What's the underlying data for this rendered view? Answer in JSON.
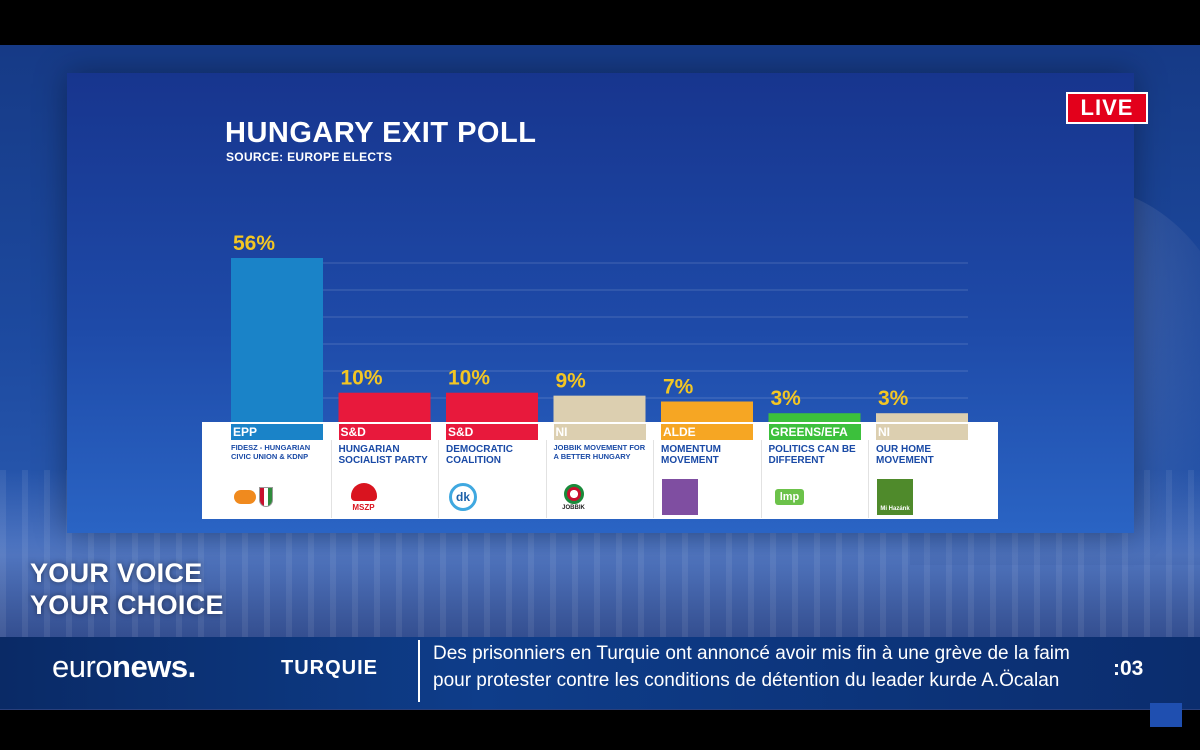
{
  "live_label": "LIVE",
  "tagline": [
    "YOUR VOICE",
    "YOUR CHOICE"
  ],
  "ticker": {
    "brand_light": "euro",
    "brand_bold": "news.",
    "section": "TURQUIE",
    "headline_lines": [
      "Des prisonniers en Turquie ont annoncé avoir mis fin à une grève de la faim",
      "pour protester contre les conditions de détention du leader kurde A.Öcalan"
    ],
    "timer": ":03"
  },
  "watermark": "euro\nnews.",
  "chart_data": {
    "type": "bar",
    "title": "HUNGARY EXIT POLL",
    "subtitle": "SOURCE: EUROPE ELECTS",
    "ylim": [
      0,
      60
    ],
    "grid": true,
    "value_suffix": "%",
    "categories": [
      "FIDESZ - HUNGARIAN CIVIC UNION & KDNP",
      "HUNGARIAN SOCIALIST PARTY",
      "DEMOCRATIC COALITION",
      "JOBBIK MOVEMENT FOR A BETTER HUNGARY",
      "MOMENTUM MOVEMENT",
      "POLITICS CAN BE DIFFERENT",
      "OUR HOME MOVEMENT"
    ],
    "groups": [
      "EPP",
      "S&D",
      "S&D",
      "NI",
      "ALDE",
      "GREENS/EFA",
      "NI"
    ],
    "values": [
      56,
      10,
      10,
      9,
      7,
      3,
      3
    ],
    "data_labels": [
      "56%",
      "10%",
      "10%",
      "9%",
      "7%",
      "3%",
      "3%"
    ],
    "colors": [
      "#1a83c8",
      "#e8193c",
      "#e8193c",
      "#dccfb0",
      "#f6a623",
      "#3cc03c",
      "#dccfb0"
    ],
    "group_text_colors": [
      "#ffffff",
      "#ffffff",
      "#ffffff",
      "#ffffff",
      "#ffffff",
      "#ffffff",
      "#ffffff"
    ],
    "value_label_color": "#f3c623",
    "logos": [
      "fidesz-kdnp-logo",
      "mszp-logo",
      "dk-logo",
      "jobbik-logo",
      "momentum-logo",
      "lmp-logo",
      "mi-hazank-logo"
    ],
    "logo_text": [
      "",
      "MSZP",
      "dk",
      "JOBBIK",
      "",
      "lmp",
      "Mi Hazánk"
    ]
  }
}
